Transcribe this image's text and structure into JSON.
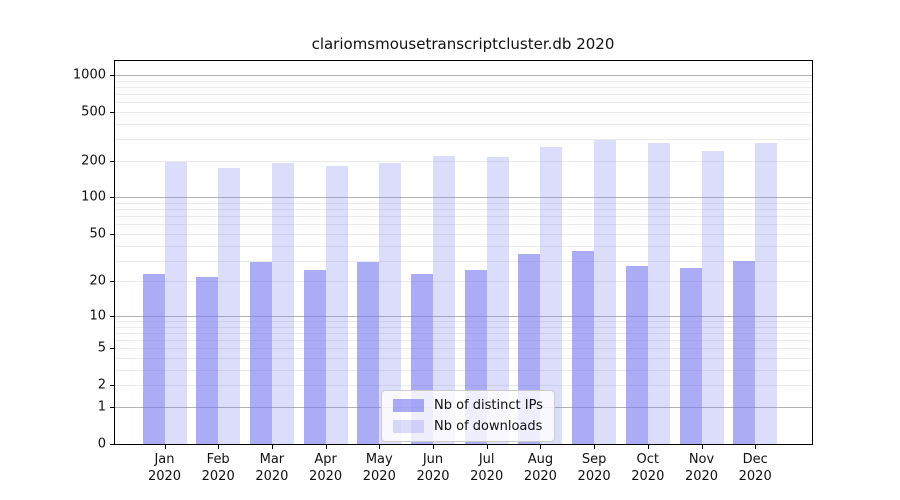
{
  "chart_data": {
    "type": "bar",
    "title": "clariomsmousetranscriptcluster.db 2020",
    "categories": [
      "Jan 2020",
      "Feb 2020",
      "Mar 2020",
      "Apr 2020",
      "May 2020",
      "Jun 2020",
      "Jul 2020",
      "Aug 2020",
      "Sep 2020",
      "Oct 2020",
      "Nov 2020",
      "Dec 2020"
    ],
    "series": [
      {
        "name": "Nb of distinct IPs",
        "color": "rgba(120,120,240,0.62)",
        "values": [
          23,
          22,
          29,
          25,
          29,
          23,
          25,
          34,
          36,
          27,
          26,
          30
        ]
      },
      {
        "name": "Nb of downloads",
        "color": "rgba(120,120,240,0.26)",
        "values": [
          195,
          174,
          190,
          180,
          190,
          217,
          215,
          258,
          295,
          278,
          240,
          278
        ]
      }
    ],
    "yscale": "log1p",
    "yticks": [
      0,
      1,
      2,
      5,
      10,
      20,
      50,
      100,
      200,
      500,
      1000
    ],
    "ylim": [
      0,
      1000
    ],
    "xlabel": "",
    "ylabel": "",
    "grid": "horizontal",
    "legend_position": "bottom-center-inside",
    "colors": {
      "bar_base": "#7878f0",
      "major_grid": "#b3b3b3",
      "minor_grid": "#ebebeb",
      "spine": "#000000",
      "background": "#ffffff"
    }
  }
}
